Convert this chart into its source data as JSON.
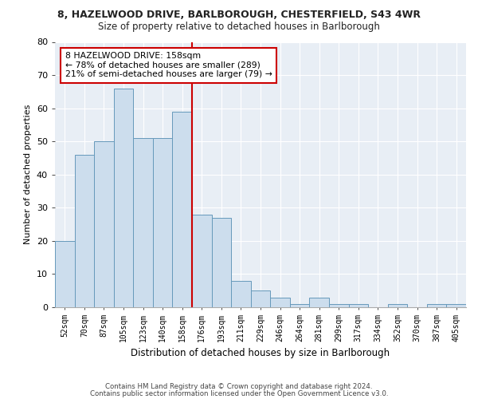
{
  "title": "8, HAZELWOOD DRIVE, BARLBOROUGH, CHESTERFIELD, S43 4WR",
  "subtitle": "Size of property relative to detached houses in Barlborough",
  "xlabel": "Distribution of detached houses by size in Barlborough",
  "ylabel": "Number of detached properties",
  "bar_color": "#ccdded",
  "bar_edge_color": "#6699bb",
  "categories": [
    "52sqm",
    "70sqm",
    "87sqm",
    "105sqm",
    "123sqm",
    "140sqm",
    "158sqm",
    "176sqm",
    "193sqm",
    "211sqm",
    "229sqm",
    "246sqm",
    "264sqm",
    "281sqm",
    "299sqm",
    "317sqm",
    "334sqm",
    "352sqm",
    "370sqm",
    "387sqm",
    "405sqm"
  ],
  "values": [
    20,
    46,
    50,
    66,
    51,
    51,
    59,
    28,
    27,
    8,
    5,
    3,
    1,
    3,
    1,
    1,
    0,
    1,
    0,
    1,
    1
  ],
  "vline_index": 6,
  "vline_color": "#cc0000",
  "annotation_line1": "8 HAZELWOOD DRIVE: 158sqm",
  "annotation_line2": "← 78% of detached houses are smaller (289)",
  "annotation_line3": "21% of semi-detached houses are larger (79) →",
  "annotation_box_color": "#ffffff",
  "annotation_edge_color": "#cc0000",
  "ylim": [
    0,
    80
  ],
  "yticks": [
    0,
    10,
    20,
    30,
    40,
    50,
    60,
    70,
    80
  ],
  "background_color": "#e8eef5",
  "footer1": "Contains HM Land Registry data © Crown copyright and database right 2024.",
  "footer2": "Contains public sector information licensed under the Open Government Licence v3.0."
}
